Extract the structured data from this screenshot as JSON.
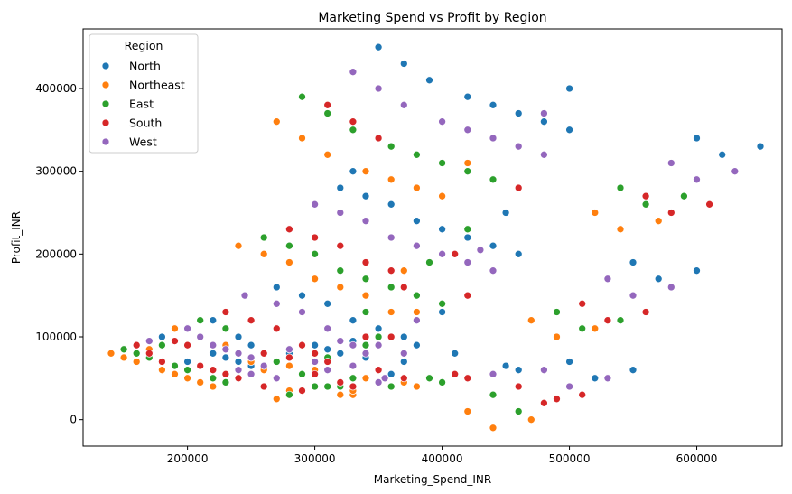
{
  "chart_data": {
    "type": "scatter",
    "title": "Marketing Spend vs Profit by Region",
    "xlabel": "Marketing_Spend_INR",
    "ylabel": "Profit_INR",
    "xlim": [
      118000,
      667000
    ],
    "ylim": [
      -32000,
      472000
    ],
    "xticks": [
      200000,
      300000,
      400000,
      500000,
      600000
    ],
    "yticks": [
      0,
      100000,
      200000,
      300000,
      400000
    ],
    "grid": false,
    "legend": {
      "title": "Region",
      "placement": "top-left"
    },
    "series": [
      {
        "name": "North",
        "color": "#1f77b4",
        "points": [
          [
            350000,
            450000
          ],
          [
            370000,
            430000
          ],
          [
            390000,
            410000
          ],
          [
            420000,
            390000
          ],
          [
            440000,
            380000
          ],
          [
            460000,
            370000
          ],
          [
            480000,
            360000
          ],
          [
            500000,
            350000
          ],
          [
            500000,
            400000
          ],
          [
            600000,
            340000
          ],
          [
            620000,
            320000
          ],
          [
            650000,
            330000
          ],
          [
            340000,
            270000
          ],
          [
            360000,
            260000
          ],
          [
            380000,
            240000
          ],
          [
            400000,
            230000
          ],
          [
            420000,
            220000
          ],
          [
            440000,
            210000
          ],
          [
            460000,
            200000
          ],
          [
            450000,
            250000
          ],
          [
            320000,
            280000
          ],
          [
            310000,
            320000
          ],
          [
            330000,
            300000
          ],
          [
            270000,
            160000
          ],
          [
            290000,
            150000
          ],
          [
            310000,
            140000
          ],
          [
            330000,
            120000
          ],
          [
            350000,
            110000
          ],
          [
            370000,
            100000
          ],
          [
            380000,
            90000
          ],
          [
            400000,
            130000
          ],
          [
            410000,
            80000
          ],
          [
            180000,
            100000
          ],
          [
            200000,
            110000
          ],
          [
            220000,
            120000
          ],
          [
            240000,
            100000
          ],
          [
            250000,
            90000
          ],
          [
            260000,
            80000
          ],
          [
            280000,
            80000
          ],
          [
            300000,
            90000
          ],
          [
            310000,
            85000
          ],
          [
            320000,
            80000
          ],
          [
            340000,
            75000
          ],
          [
            350000,
            60000
          ],
          [
            360000,
            55000
          ],
          [
            330000,
            95000
          ],
          [
            350000,
            100000
          ],
          [
            370000,
            70000
          ],
          [
            440000,
            55000
          ],
          [
            450000,
            65000
          ],
          [
            460000,
            60000
          ],
          [
            500000,
            70000
          ],
          [
            520000,
            50000
          ],
          [
            550000,
            60000
          ],
          [
            550000,
            190000
          ],
          [
            570000,
            170000
          ],
          [
            600000,
            180000
          ],
          [
            200000,
            70000
          ],
          [
            220000,
            80000
          ],
          [
            230000,
            75000
          ],
          [
            240000,
            70000
          ],
          [
            250000,
            65000
          ],
          [
            260000,
            60000
          ]
        ]
      },
      {
        "name": "Northeast",
        "color": "#ff7f0e",
        "points": [
          [
            270000,
            360000
          ],
          [
            290000,
            340000
          ],
          [
            310000,
            320000
          ],
          [
            340000,
            300000
          ],
          [
            360000,
            290000
          ],
          [
            380000,
            280000
          ],
          [
            400000,
            270000
          ],
          [
            420000,
            300000
          ],
          [
            420000,
            310000
          ],
          [
            240000,
            210000
          ],
          [
            260000,
            200000
          ],
          [
            280000,
            190000
          ],
          [
            300000,
            170000
          ],
          [
            320000,
            160000
          ],
          [
            340000,
            150000
          ],
          [
            360000,
            130000
          ],
          [
            370000,
            180000
          ],
          [
            380000,
            130000
          ],
          [
            140000,
            80000
          ],
          [
            150000,
            75000
          ],
          [
            160000,
            70000
          ],
          [
            170000,
            85000
          ],
          [
            180000,
            60000
          ],
          [
            190000,
            55000
          ],
          [
            200000,
            50000
          ],
          [
            210000,
            45000
          ],
          [
            220000,
            40000
          ],
          [
            190000,
            110000
          ],
          [
            270000,
            25000
          ],
          [
            280000,
            35000
          ],
          [
            290000,
            35000
          ],
          [
            320000,
            30000
          ],
          [
            330000,
            30000
          ],
          [
            350000,
            60000
          ],
          [
            370000,
            45000
          ],
          [
            380000,
            40000
          ],
          [
            420000,
            10000
          ],
          [
            440000,
            -10000
          ],
          [
            470000,
            0
          ],
          [
            470000,
            120000
          ],
          [
            490000,
            100000
          ],
          [
            490000,
            130000
          ],
          [
            520000,
            110000
          ],
          [
            520000,
            250000
          ],
          [
            540000,
            230000
          ],
          [
            570000,
            240000
          ],
          [
            230000,
            90000
          ],
          [
            250000,
            70000
          ],
          [
            260000,
            60000
          ],
          [
            280000,
            65000
          ],
          [
            300000,
            60000
          ],
          [
            330000,
            35000
          ],
          [
            340000,
            50000
          ]
        ]
      },
      {
        "name": "East",
        "color": "#2ca02c",
        "points": [
          [
            290000,
            390000
          ],
          [
            310000,
            370000
          ],
          [
            330000,
            350000
          ],
          [
            360000,
            330000
          ],
          [
            380000,
            320000
          ],
          [
            400000,
            310000
          ],
          [
            420000,
            300000
          ],
          [
            440000,
            290000
          ],
          [
            540000,
            280000
          ],
          [
            560000,
            260000
          ],
          [
            590000,
            270000
          ],
          [
            260000,
            220000
          ],
          [
            280000,
            210000
          ],
          [
            300000,
            200000
          ],
          [
            320000,
            180000
          ],
          [
            340000,
            170000
          ],
          [
            360000,
            160000
          ],
          [
            380000,
            150000
          ],
          [
            390000,
            190000
          ],
          [
            400000,
            140000
          ],
          [
            420000,
            230000
          ],
          [
            150000,
            85000
          ],
          [
            160000,
            80000
          ],
          [
            170000,
            75000
          ],
          [
            180000,
            90000
          ],
          [
            190000,
            65000
          ],
          [
            200000,
            60000
          ],
          [
            210000,
            120000
          ],
          [
            220000,
            50000
          ],
          [
            230000,
            45000
          ],
          [
            230000,
            110000
          ],
          [
            280000,
            30000
          ],
          [
            300000,
            40000
          ],
          [
            310000,
            40000
          ],
          [
            320000,
            40000
          ],
          [
            330000,
            50000
          ],
          [
            340000,
            90000
          ],
          [
            360000,
            40000
          ],
          [
            390000,
            50000
          ],
          [
            400000,
            45000
          ],
          [
            440000,
            30000
          ],
          [
            460000,
            10000
          ],
          [
            480000,
            20000
          ],
          [
            490000,
            130000
          ],
          [
            510000,
            110000
          ],
          [
            540000,
            120000
          ],
          [
            250000,
            75000
          ],
          [
            270000,
            70000
          ],
          [
            290000,
            55000
          ],
          [
            310000,
            75000
          ],
          [
            340000,
            130000
          ],
          [
            350000,
            100000
          ]
        ]
      },
      {
        "name": "South",
        "color": "#d62728",
        "points": [
          [
            310000,
            380000
          ],
          [
            330000,
            360000
          ],
          [
            350000,
            340000
          ],
          [
            280000,
            230000
          ],
          [
            300000,
            220000
          ],
          [
            320000,
            210000
          ],
          [
            340000,
            190000
          ],
          [
            360000,
            180000
          ],
          [
            370000,
            160000
          ],
          [
            410000,
            200000
          ],
          [
            420000,
            150000
          ],
          [
            460000,
            280000
          ],
          [
            560000,
            270000
          ],
          [
            580000,
            250000
          ],
          [
            610000,
            260000
          ],
          [
            160000,
            90000
          ],
          [
            170000,
            80000
          ],
          [
            180000,
            70000
          ],
          [
            190000,
            95000
          ],
          [
            200000,
            90000
          ],
          [
            210000,
            65000
          ],
          [
            220000,
            60000
          ],
          [
            230000,
            130000
          ],
          [
            230000,
            55000
          ],
          [
            240000,
            50000
          ],
          [
            250000,
            120000
          ],
          [
            260000,
            80000
          ],
          [
            270000,
            110000
          ],
          [
            280000,
            75000
          ],
          [
            290000,
            90000
          ],
          [
            300000,
            80000
          ],
          [
            310000,
            70000
          ],
          [
            320000,
            45000
          ],
          [
            330000,
            40000
          ],
          [
            340000,
            100000
          ],
          [
            350000,
            60000
          ],
          [
            360000,
            100000
          ],
          [
            370000,
            50000
          ],
          [
            410000,
            55000
          ],
          [
            420000,
            50000
          ],
          [
            460000,
            40000
          ],
          [
            480000,
            20000
          ],
          [
            490000,
            25000
          ],
          [
            510000,
            30000
          ],
          [
            510000,
            140000
          ],
          [
            530000,
            120000
          ],
          [
            560000,
            130000
          ],
          [
            290000,
            35000
          ],
          [
            300000,
            55000
          ],
          [
            260000,
            40000
          ]
        ]
      },
      {
        "name": "West",
        "color": "#9467bd",
        "points": [
          [
            330000,
            420000
          ],
          [
            350000,
            400000
          ],
          [
            370000,
            380000
          ],
          [
            400000,
            360000
          ],
          [
            420000,
            350000
          ],
          [
            440000,
            340000
          ],
          [
            460000,
            330000
          ],
          [
            480000,
            320000
          ],
          [
            480000,
            370000
          ],
          [
            580000,
            310000
          ],
          [
            600000,
            290000
          ],
          [
            630000,
            300000
          ],
          [
            300000,
            260000
          ],
          [
            320000,
            250000
          ],
          [
            340000,
            240000
          ],
          [
            360000,
            220000
          ],
          [
            380000,
            210000
          ],
          [
            400000,
            200000
          ],
          [
            420000,
            190000
          ],
          [
            430000,
            205000
          ],
          [
            440000,
            180000
          ],
          [
            170000,
            95000
          ],
          [
            200000,
            110000
          ],
          [
            210000,
            100000
          ],
          [
            220000,
            90000
          ],
          [
            230000,
            85000
          ],
          [
            240000,
            80000
          ],
          [
            245000,
            150000
          ],
          [
            250000,
            75000
          ],
          [
            260000,
            65000
          ],
          [
            270000,
            140000
          ],
          [
            280000,
            85000
          ],
          [
            290000,
            130000
          ],
          [
            300000,
            70000
          ],
          [
            310000,
            110000
          ],
          [
            320000,
            95000
          ],
          [
            330000,
            90000
          ],
          [
            340000,
            80000
          ],
          [
            350000,
            90000
          ],
          [
            355000,
            50000
          ],
          [
            370000,
            80000
          ],
          [
            380000,
            120000
          ],
          [
            440000,
            55000
          ],
          [
            480000,
            60000
          ],
          [
            500000,
            40000
          ],
          [
            530000,
            50000
          ],
          [
            530000,
            170000
          ],
          [
            550000,
            150000
          ],
          [
            580000,
            160000
          ],
          [
            240000,
            60000
          ],
          [
            250000,
            55000
          ],
          [
            270000,
            50000
          ],
          [
            310000,
            60000
          ],
          [
            330000,
            65000
          ],
          [
            350000,
            45000
          ]
        ]
      }
    ]
  }
}
